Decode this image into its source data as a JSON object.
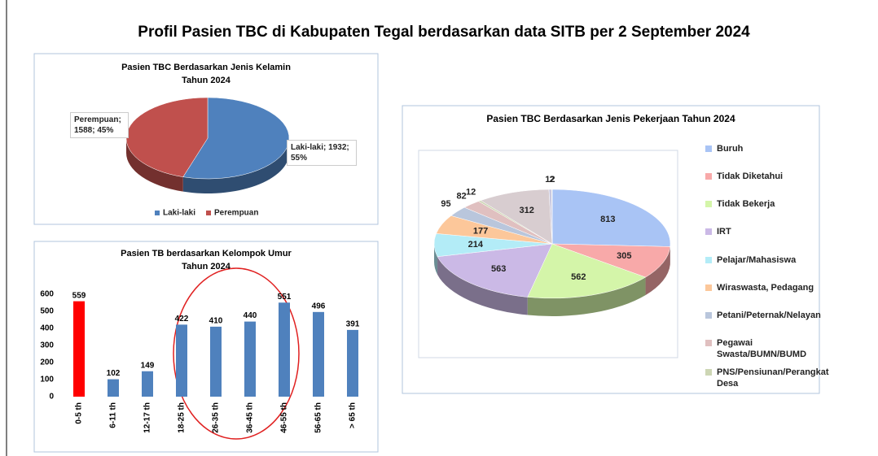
{
  "title": "Profil Pasien TBC di Kabupaten Tegal berdasarkan data SITB per 2 September 2024",
  "chart_data": [
    {
      "type": "pie",
      "title": "Pasien TBC Berdasarkan Jenis Kelamin",
      "subtitle": "Tahun 2024",
      "categories": [
        "Laki-laki",
        "Perempuan"
      ],
      "values": [
        1932,
        1588
      ],
      "value_labels": [
        "Laki-laki; 1932; 55%",
        "Perempuan; 1588; 45%"
      ],
      "colors": [
        "#4f81bd",
        "#c0504d"
      ],
      "legend": "bottom"
    },
    {
      "type": "bar",
      "title": "Pasien TB berdasarkan Kelompok Umur",
      "subtitle": "Tahun 2024",
      "categories": [
        "0-5 th",
        "6-11 th",
        "12-17 th",
        "18-25 th",
        "26-35 th",
        "36-45 th",
        "46-55 th",
        "56-65 th",
        "> 65 th"
      ],
      "values": [
        559,
        102,
        149,
        422,
        410,
        440,
        551,
        496,
        391
      ],
      "colors": [
        "#ff0000",
        "#4f81bd",
        "#4f81bd",
        "#4f81bd",
        "#4f81bd",
        "#4f81bd",
        "#4f81bd",
        "#4f81bd",
        "#4f81bd"
      ],
      "ylim": [
        0,
        600
      ],
      "yticks": [
        0,
        100,
        200,
        300,
        400,
        500,
        600
      ],
      "grid": false
    },
    {
      "type": "pie",
      "title": "Pasien TBC Berdasarkan Jenis Pekerjaan Tahun 2024",
      "categories": [
        "Buruh",
        "Tidak Diketahui",
        "Tidak Bekerja",
        "IRT",
        "Pelajar/Mahasiswa",
        "Wiraswasta, Pedagang",
        "Petani/Peternak/Nelayan",
        "Pegawai Swasta/BUMN/BUMD",
        "PNS/Pensiunan/Perangkat Desa",
        null,
        null,
        null
      ],
      "values": [
        813,
        305,
        562,
        563,
        214,
        177,
        95,
        82,
        12,
        312,
        12,
        2
      ],
      "colors": [
        "#a9c4f5",
        "#f8a9a9",
        "#d4f5a9",
        "#cbb9e6",
        "#b3ecf7",
        "#fcc79a",
        "#b9c6dc",
        "#e0c0c0",
        "#cdd6b4",
        "#d8cdd0",
        "#c8c8e0",
        "#e8e0c8"
      ],
      "legend": "right"
    }
  ]
}
